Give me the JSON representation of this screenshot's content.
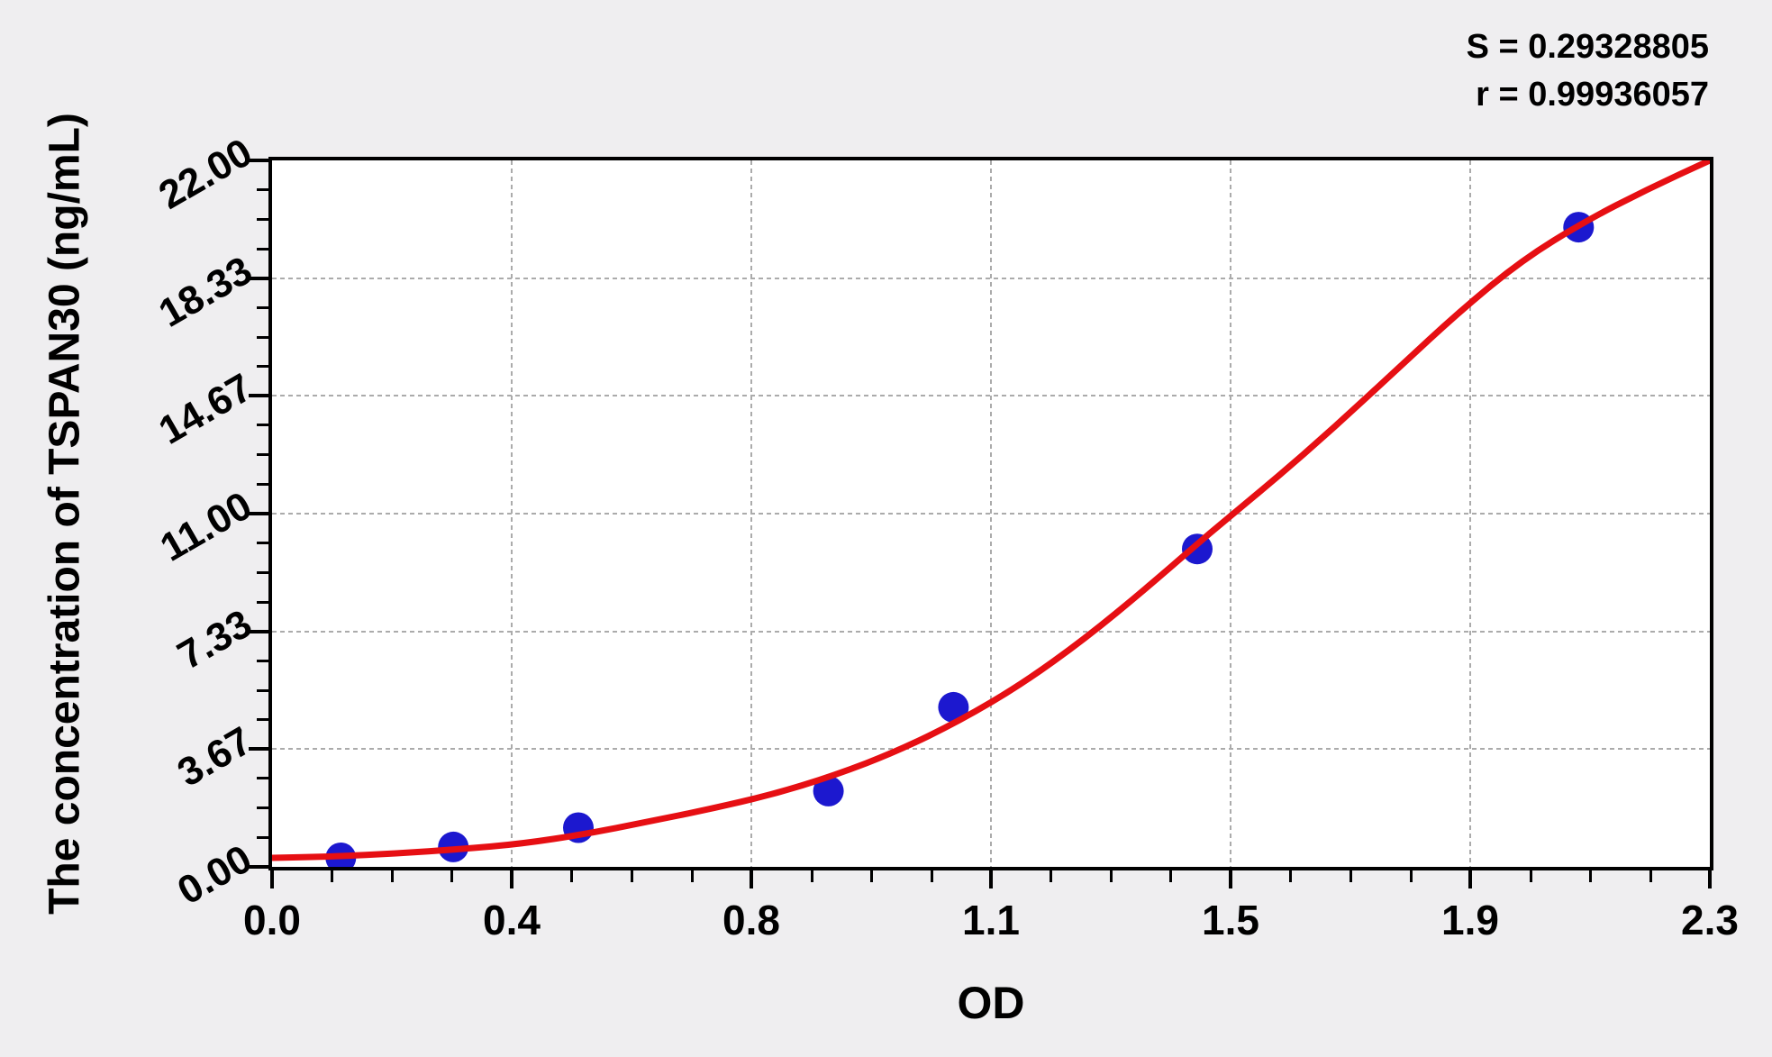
{
  "page": {
    "background": "#efeef0",
    "text_color": "#000000"
  },
  "stats": {
    "s_line": "S = 0.29328805",
    "r_line": "r = 0.99936057"
  },
  "chart_data": {
    "type": "scatter",
    "title": "",
    "xlabel": "OD",
    "ylabel": "The concentration of TSPAN30 (ng/mL)",
    "xlim": [
      0,
      2.3
    ],
    "ylim": [
      0,
      22
    ],
    "x_tick_values": [
      0,
      0.3833,
      0.7667,
      1.15,
      1.5333,
      1.9167,
      2.3
    ],
    "x_tick_labels": [
      "0.0",
      "0.4",
      "0.8",
      "1.1",
      "1.5",
      "1.9",
      "2.3"
    ],
    "y_tick_values": [
      0,
      3.6667,
      7.3333,
      11,
      14.6667,
      18.3333,
      22
    ],
    "y_tick_labels": [
      "0.00",
      "3.67",
      "7.33",
      "11.00",
      "14.67",
      "18.33",
      "22.00"
    ],
    "minor_ticks_per_interval": 3,
    "grid": {
      "show_major": true,
      "style": "dashed",
      "color": "#ababab"
    },
    "annotations": [
      "S = 0.29328805",
      "r = 0.99936057"
    ],
    "series": [
      {
        "name": "standard-points",
        "type": "scatter",
        "color": "#1c18cf",
        "marker_radius": 17,
        "points": [
          [
            0.11,
            0.28
          ],
          [
            0.29,
            0.62
          ],
          [
            0.49,
            1.22
          ],
          [
            0.89,
            2.36
          ],
          [
            1.09,
            4.97
          ],
          [
            1.48,
            9.9
          ],
          [
            2.09,
            19.92
          ]
        ]
      },
      {
        "name": "fitted-curve",
        "type": "line",
        "color": "#e60f13",
        "stroke_width": 7,
        "points": [
          [
            0.0,
            0.28
          ],
          [
            0.1,
            0.32
          ],
          [
            0.2,
            0.42
          ],
          [
            0.3,
            0.55
          ],
          [
            0.4,
            0.72
          ],
          [
            0.5,
            1.02
          ],
          [
            0.6,
            1.4
          ],
          [
            0.7,
            1.8
          ],
          [
            0.8,
            2.25
          ],
          [
            0.9,
            2.85
          ],
          [
            1.0,
            3.6
          ],
          [
            1.1,
            4.55
          ],
          [
            1.2,
            5.7
          ],
          [
            1.3,
            7.1
          ],
          [
            1.4,
            8.7
          ],
          [
            1.5,
            10.4
          ],
          [
            1.6,
            12.0
          ],
          [
            1.7,
            13.7
          ],
          [
            1.8,
            15.5
          ],
          [
            1.9,
            17.3
          ],
          [
            2.0,
            18.9
          ],
          [
            2.1,
            20.1
          ],
          [
            2.2,
            21.1
          ],
          [
            2.3,
            22.0
          ]
        ]
      }
    ]
  }
}
